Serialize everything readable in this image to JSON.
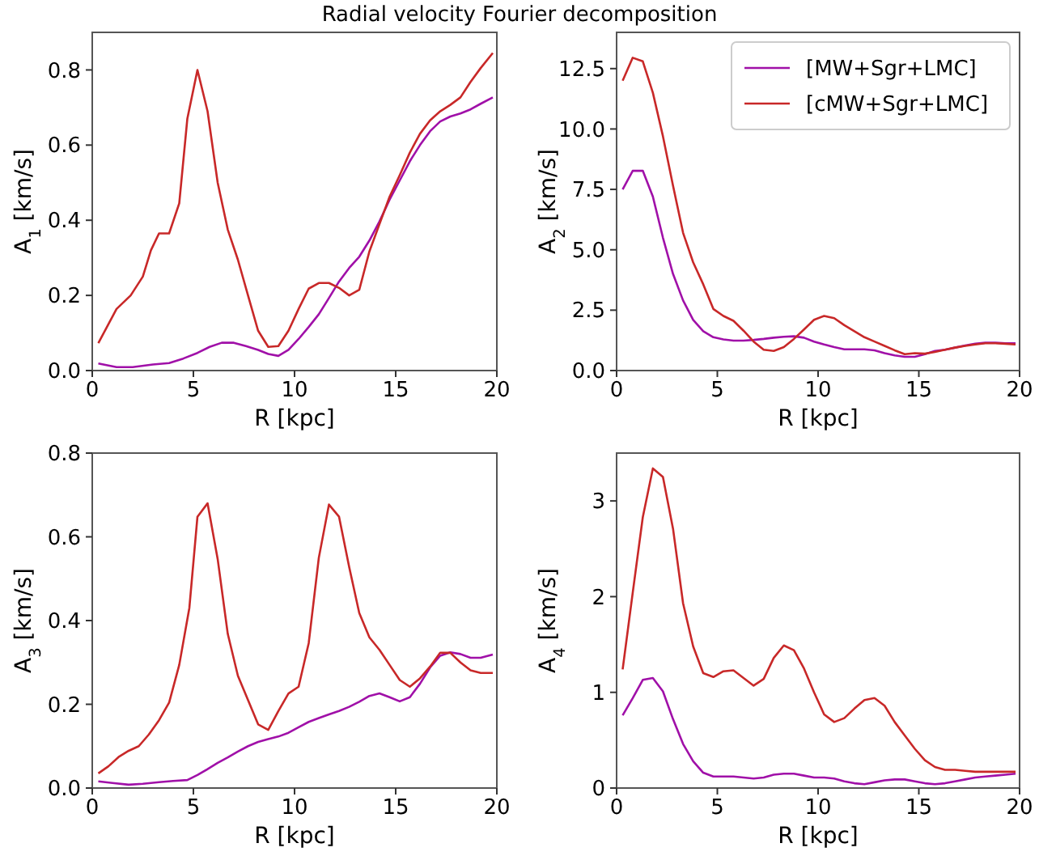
{
  "chart_data": [
    {
      "type": "line",
      "title": "Radial velocity Fourier decomposition",
      "xlabel": "R [kpc]",
      "ylabel": "A$_{1}$ [km/s]",
      "xlim": [
        0,
        20
      ],
      "xticks": [
        0,
        5,
        10,
        15,
        20
      ],
      "ylim": [
        0,
        0.9
      ],
      "yticks": [
        {
          "value": 0,
          "label": "0.0"
        },
        {
          "value": 0.2,
          "label": "0.2"
        },
        {
          "value": 0.4,
          "label": "0.4"
        },
        {
          "value": 0.6,
          "label": "0.6"
        },
        {
          "value": 0.8,
          "label": "0.8"
        }
      ],
      "grid": false,
      "legend": false,
      "series": [
        {
          "color": "#a010a8",
          "x": [
            0.3,
            1.2,
            2,
            3,
            3.8,
            4.5,
            5.2,
            5.8,
            6.4,
            7,
            7.6,
            8.2,
            8.7,
            9.2,
            9.7,
            10.2,
            10.7,
            11.2,
            11.7,
            12.2,
            12.7,
            13.2,
            13.7,
            14.2,
            14.7,
            15.2,
            15.7,
            16.2,
            16.7,
            17.2,
            17.7,
            18.2,
            18.7,
            19.2,
            19.8
          ],
          "values": [
            0.019,
            0.009,
            0.009,
            0.016,
            0.02,
            0.032,
            0.047,
            0.063,
            0.074,
            0.074,
            0.065,
            0.055,
            0.044,
            0.039,
            0.055,
            0.084,
            0.116,
            0.15,
            0.193,
            0.237,
            0.273,
            0.303,
            0.346,
            0.397,
            0.455,
            0.506,
            0.557,
            0.6,
            0.637,
            0.663,
            0.676,
            0.684,
            0.695,
            0.71,
            0.727
          ]
        },
        {
          "color": "#c82828",
          "x": [
            0.3,
            1.2,
            1.9,
            2.5,
            2.9,
            3.3,
            3.8,
            4.3,
            4.7,
            5.2,
            5.7,
            6.2,
            6.7,
            7.2,
            7.7,
            8.2,
            8.7,
            9.2,
            9.7,
            10.2,
            10.7,
            11.2,
            11.7,
            12.2,
            12.7,
            13.2,
            13.7,
            14.2,
            14.7,
            15.2,
            15.7,
            16.2,
            16.7,
            17.2,
            17.7,
            18.2,
            18.7,
            19.2,
            19.8
          ],
          "values": [
            0.073,
            0.164,
            0.2,
            0.25,
            0.32,
            0.365,
            0.365,
            0.445,
            0.67,
            0.8,
            0.69,
            0.5,
            0.375,
            0.295,
            0.2,
            0.106,
            0.063,
            0.065,
            0.106,
            0.164,
            0.218,
            0.233,
            0.233,
            0.22,
            0.2,
            0.215,
            0.317,
            0.39,
            0.463,
            0.52,
            0.58,
            0.63,
            0.666,
            0.69,
            0.707,
            0.727,
            0.768,
            0.805,
            0.845
          ]
        }
      ]
    },
    {
      "type": "line",
      "xlabel": "R [kpc]",
      "ylabel": "A$_{2}$ [km/s]",
      "xlim": [
        0,
        20
      ],
      "xticks": [
        0,
        5,
        10,
        15,
        20
      ],
      "ylim": [
        0,
        14
      ],
      "yticks": [
        {
          "value": 0,
          "label": "0.0"
        },
        {
          "value": 2.5,
          "label": "2.5"
        },
        {
          "value": 5,
          "label": "5.0"
        },
        {
          "value": 7.5,
          "label": "7.5"
        },
        {
          "value": 10,
          "label": "10.0"
        },
        {
          "value": 12.5,
          "label": "12.5"
        }
      ],
      "grid": false,
      "legend": "top right",
      "series": [
        {
          "name": "[MW+Sgr+LMC]",
          "color": "#a010a8",
          "x": [
            0.3,
            0.8,
            1.3,
            1.8,
            2.3,
            2.8,
            3.3,
            3.8,
            4.3,
            4.8,
            5.3,
            5.8,
            6.3,
            6.8,
            7.3,
            7.8,
            8.3,
            8.8,
            9.3,
            9.8,
            10.3,
            10.8,
            11.3,
            11.8,
            12.3,
            12.8,
            13.3,
            13.8,
            14.3,
            14.8,
            15.3,
            15.8,
            16.3,
            16.8,
            17.3,
            17.8,
            18.3,
            18.8,
            19.3,
            19.8
          ],
          "values": [
            7.5,
            8.27,
            8.27,
            7.2,
            5.5,
            4.0,
            2.9,
            2.1,
            1.63,
            1.38,
            1.29,
            1.24,
            1.24,
            1.27,
            1.31,
            1.36,
            1.4,
            1.42,
            1.36,
            1.2,
            1.08,
            0.97,
            0.88,
            0.88,
            0.88,
            0.84,
            0.72,
            0.63,
            0.57,
            0.57,
            0.68,
            0.81,
            0.86,
            0.95,
            1.04,
            1.11,
            1.15,
            1.15,
            1.13,
            1.13
          ]
        },
        {
          "name": "[cMW+Sgr+LMC]",
          "color": "#c82828",
          "x": [
            0.3,
            0.8,
            1.3,
            1.8,
            2.3,
            2.8,
            3.3,
            3.8,
            4.3,
            4.8,
            5.3,
            5.8,
            6.3,
            6.8,
            7.3,
            7.8,
            8.3,
            8.8,
            9.3,
            9.8,
            10.3,
            10.8,
            11.3,
            11.8,
            12.3,
            12.8,
            13.3,
            13.8,
            14.3,
            14.8,
            15.3,
            15.8,
            16.3,
            16.8,
            17.3,
            17.8,
            18.3,
            18.8,
            19.3,
            19.8
          ],
          "values": [
            12.0,
            12.95,
            12.8,
            11.5,
            9.7,
            7.65,
            5.7,
            4.48,
            3.57,
            2.55,
            2.26,
            2.06,
            1.65,
            1.2,
            0.86,
            0.81,
            0.97,
            1.31,
            1.7,
            2.1,
            2.26,
            2.17,
            1.88,
            1.63,
            1.38,
            1.2,
            1.02,
            0.84,
            0.68,
            0.72,
            0.7,
            0.77,
            0.86,
            0.95,
            1.02,
            1.08,
            1.13,
            1.13,
            1.11,
            1.08
          ]
        }
      ]
    },
    {
      "type": "line",
      "xlabel": "R [kpc]",
      "ylabel": "A$_{3}$ [km/s]",
      "xlim": [
        0,
        20
      ],
      "xticks": [
        0,
        5,
        10,
        15,
        20
      ],
      "ylim": [
        0,
        0.8
      ],
      "yticks": [
        {
          "value": 0,
          "label": "0.0"
        },
        {
          "value": 0.2,
          "label": "0.2"
        },
        {
          "value": 0.4,
          "label": "0.4"
        },
        {
          "value": 0.6,
          "label": "0.6"
        },
        {
          "value": 0.8,
          "label": "0.8"
        }
      ],
      "grid": false,
      "legend": false,
      "series": [
        {
          "color": "#a010a8",
          "x": [
            0.3,
            1,
            1.8,
            2.5,
            3.3,
            4,
            4.7,
            5.2,
            5.7,
            6.2,
            6.7,
            7.2,
            7.7,
            8.2,
            8.7,
            9.2,
            9.7,
            10.2,
            10.7,
            11.2,
            11.7,
            12.2,
            12.7,
            13.2,
            13.7,
            14.2,
            14.7,
            15.2,
            15.7,
            16.2,
            16.7,
            17.2,
            17.7,
            18.2,
            18.7,
            19.2,
            19.8
          ],
          "values": [
            0.016,
            0.012,
            0.008,
            0.01,
            0.014,
            0.017,
            0.019,
            0.031,
            0.045,
            0.06,
            0.073,
            0.087,
            0.1,
            0.11,
            0.117,
            0.123,
            0.132,
            0.145,
            0.158,
            0.167,
            0.176,
            0.184,
            0.194,
            0.206,
            0.22,
            0.226,
            0.217,
            0.207,
            0.217,
            0.249,
            0.288,
            0.316,
            0.324,
            0.32,
            0.311,
            0.311,
            0.319
          ]
        },
        {
          "color": "#c82828",
          "x": [
            0.3,
            0.8,
            1.3,
            1.8,
            2.3,
            2.8,
            3.3,
            3.8,
            4.3,
            4.8,
            5.2,
            5.7,
            6.2,
            6.7,
            7.2,
            7.7,
            8.2,
            8.7,
            9.2,
            9.7,
            10.2,
            10.7,
            11.2,
            11.7,
            12.2,
            12.7,
            13.2,
            13.7,
            14.2,
            14.7,
            15.2,
            15.7,
            16.2,
            16.7,
            17.2,
            17.7,
            18.2,
            18.7,
            19.2,
            19.8
          ],
          "values": [
            0.035,
            0.052,
            0.074,
            0.089,
            0.1,
            0.128,
            0.162,
            0.204,
            0.294,
            0.43,
            0.648,
            0.68,
            0.547,
            0.368,
            0.268,
            0.21,
            0.152,
            0.139,
            0.184,
            0.226,
            0.242,
            0.346,
            0.55,
            0.677,
            0.648,
            0.528,
            0.418,
            0.36,
            0.33,
            0.294,
            0.258,
            0.242,
            0.262,
            0.29,
            0.323,
            0.323,
            0.3,
            0.281,
            0.275,
            0.275
          ]
        }
      ]
    },
    {
      "type": "line",
      "xlabel": "R [kpc]",
      "ylabel": "A$_{4}$ [km/s]",
      "xlim": [
        0,
        20
      ],
      "xticks": [
        0,
        5,
        10,
        15,
        20
      ],
      "ylim": [
        0,
        3.5
      ],
      "yticks": [
        0,
        1,
        2,
        3
      ],
      "grid": false,
      "legend": false,
      "series": [
        {
          "color": "#a010a8",
          "x": [
            0.3,
            0.8,
            1.3,
            1.8,
            2.3,
            2.8,
            3.3,
            3.8,
            4.3,
            4.8,
            5.8,
            6.8,
            7.3,
            7.8,
            8.3,
            8.8,
            9.3,
            9.8,
            10.3,
            10.8,
            11.3,
            11.8,
            12.3,
            12.8,
            13.3,
            13.8,
            14.3,
            14.8,
            15.3,
            15.8,
            16.3,
            16.8,
            17.3,
            17.8,
            18.3,
            18.8,
            19.3,
            19.8
          ],
          "values": [
            0.76,
            0.94,
            1.13,
            1.15,
            1.01,
            0.72,
            0.46,
            0.28,
            0.16,
            0.12,
            0.12,
            0.1,
            0.11,
            0.14,
            0.15,
            0.15,
            0.13,
            0.11,
            0.11,
            0.1,
            0.07,
            0.05,
            0.04,
            0.06,
            0.08,
            0.09,
            0.09,
            0.07,
            0.05,
            0.04,
            0.05,
            0.07,
            0.09,
            0.11,
            0.12,
            0.13,
            0.14,
            0.15
          ]
        },
        {
          "color": "#c82828",
          "x": [
            0.3,
            0.8,
            1.3,
            1.8,
            2.3,
            2.8,
            3.3,
            3.8,
            4.3,
            4.8,
            5.3,
            5.8,
            6.3,
            6.8,
            7.3,
            7.8,
            8.3,
            8.8,
            9.3,
            9.8,
            10.3,
            10.8,
            11.3,
            11.8,
            12.3,
            12.8,
            13.3,
            13.8,
            14.3,
            14.8,
            15.3,
            15.8,
            16.3,
            16.8,
            17.3,
            17.8,
            18.3,
            18.8,
            19.3,
            19.8
          ],
          "values": [
            1.24,
            2.04,
            2.83,
            3.34,
            3.25,
            2.71,
            1.93,
            1.48,
            1.2,
            1.16,
            1.22,
            1.23,
            1.15,
            1.07,
            1.14,
            1.36,
            1.49,
            1.44,
            1.25,
            1.0,
            0.77,
            0.69,
            0.73,
            0.83,
            0.92,
            0.94,
            0.86,
            0.69,
            0.55,
            0.41,
            0.29,
            0.22,
            0.19,
            0.19,
            0.18,
            0.17,
            0.17,
            0.17,
            0.17,
            0.17
          ]
        }
      ]
    }
  ]
}
